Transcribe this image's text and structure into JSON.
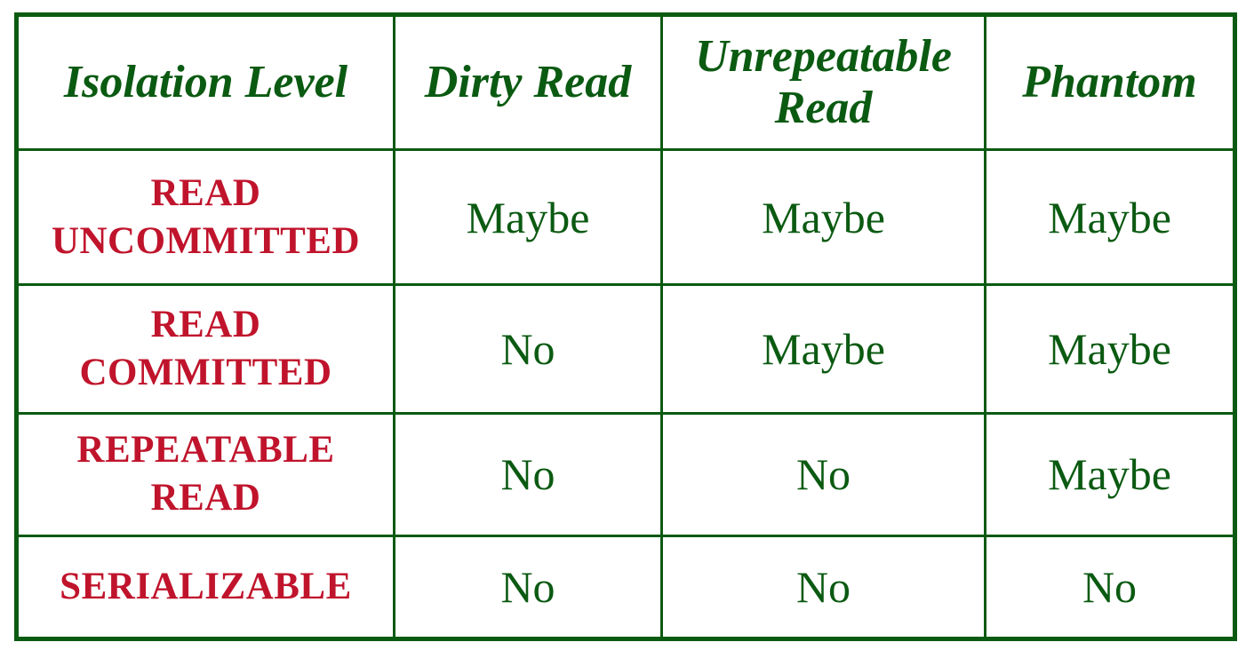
{
  "table": {
    "headers": {
      "level": "Isolation Level",
      "dirty": "Dirty Read",
      "unrepeatable_line1": "Unrepeatable",
      "unrepeatable_line2": "Read",
      "phantom": "Phantom"
    },
    "rows": [
      {
        "level_line1": "READ",
        "level_line2": "UNCOMMITTED",
        "dirty": "Maybe",
        "unrepeatable": "Maybe",
        "phantom": "Maybe"
      },
      {
        "level_line1": "READ",
        "level_line2": "COMMITTED",
        "dirty": "No",
        "unrepeatable": "Maybe",
        "phantom": "Maybe"
      },
      {
        "level_line1": "REPEATABLE",
        "level_line2": "READ",
        "dirty": "No",
        "unrepeatable": "No",
        "phantom": "Maybe"
      },
      {
        "level_line1": "SERIALIZABLE",
        "level_line2": "",
        "dirty": "No",
        "unrepeatable": "No",
        "phantom": "No"
      }
    ]
  },
  "colors": {
    "border": "#0b5a12",
    "header_text": "#0b5a12",
    "level_text": "#c0142c",
    "value_text": "#0b5a12"
  }
}
